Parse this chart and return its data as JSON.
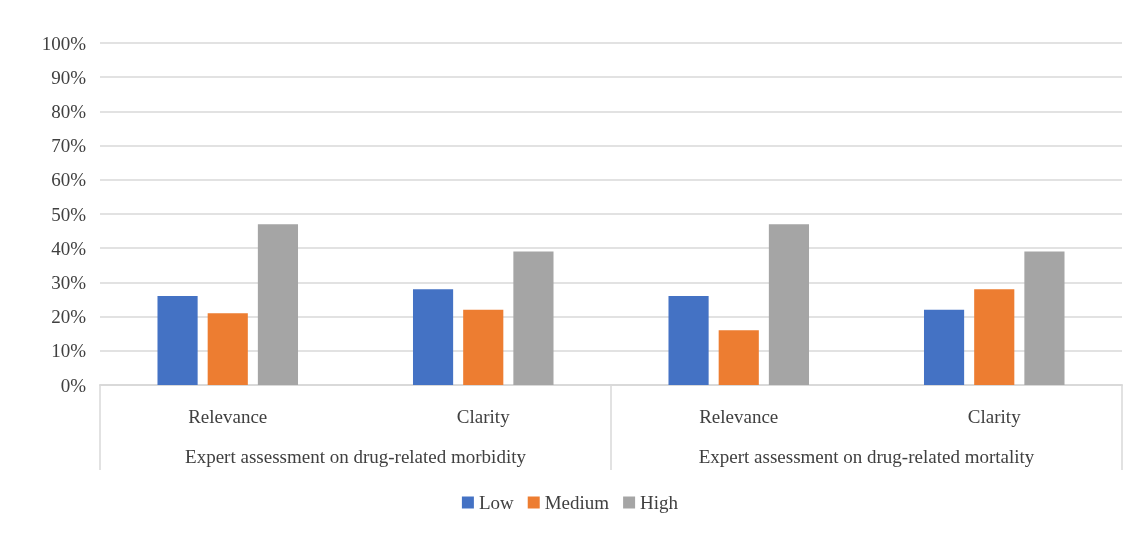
{
  "chart_data": {
    "type": "bar",
    "categories": [
      "Relevance",
      "Clarity",
      "Relevance",
      "Clarity"
    ],
    "annotations": [
      "Expert assessment on drug-related morbidity",
      "Expert assessment on drug-related mortality"
    ],
    "series": [
      {
        "name": "Low",
        "color": "#4472c4",
        "values": [
          26,
          28,
          26,
          22
        ]
      },
      {
        "name": "Medium",
        "color": "#ed7d31",
        "values": [
          21,
          22,
          16,
          28
        ]
      },
      {
        "name": "High",
        "color": "#a5a5a5",
        "values": [
          47,
          39,
          47,
          39
        ]
      }
    ],
    "ylim": [
      0,
      100
    ],
    "yticks": [
      {
        "value": 0,
        "label": "0%"
      },
      {
        "value": 10,
        "label": "10%"
      },
      {
        "value": 20,
        "label": "20%"
      },
      {
        "value": 30,
        "label": "30%"
      },
      {
        "value": 40,
        "label": "40%"
      },
      {
        "value": 50,
        "label": "50%"
      },
      {
        "value": 60,
        "label": "60%"
      },
      {
        "value": 70,
        "label": "70%"
      },
      {
        "value": 80,
        "label": "80%"
      },
      {
        "value": 90,
        "label": "90%"
      },
      {
        "value": 100,
        "label": "100%"
      }
    ],
    "grid": "y",
    "legend": "bottom"
  }
}
